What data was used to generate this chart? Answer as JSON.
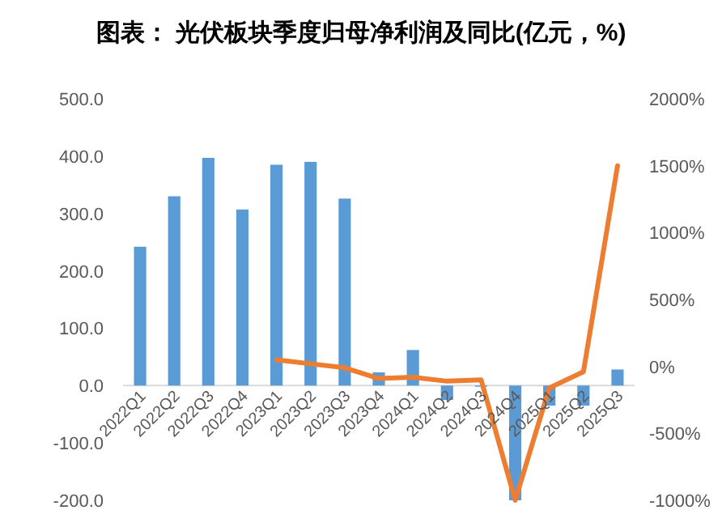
{
  "chart_data": {
    "type": "bar",
    "title": "图表：  光伏板块季度归母净利润及同比(亿元，%)",
    "categories": [
      "2022Q1",
      "2022Q2",
      "2022Q3",
      "2022Q4",
      "2023Q1",
      "2023Q2",
      "2023Q3",
      "2023Q4",
      "2024Q1",
      "2024Q2",
      "2024Q3",
      "2024Q4",
      "2025Q1",
      "2025Q2",
      "2025Q3"
    ],
    "series": [
      {
        "color": "#5b9bd5",
        "values": [
          242,
          330,
          397,
          307,
          385,
          390,
          326,
          23,
          62,
          -25,
          -2,
          -200,
          -35,
          -35,
          28
        ]
      },
      {
        "type": "line",
        "axis": "y2",
        "color": "#ed7d31",
        "values": [
          null,
          null,
          null,
          null,
          50,
          20,
          -10,
          -90,
          -80,
          -110,
          -100,
          -1000,
          -160,
          -40,
          1500
        ]
      }
    ],
    "ylim": [
      -200,
      500
    ],
    "yticks": [
      {
        "value": -200,
        "label": "-200.0"
      },
      {
        "value": -100,
        "label": "-100.0"
      },
      {
        "value": 0,
        "label": "0.0"
      },
      {
        "value": 100,
        "label": "100.0"
      },
      {
        "value": 200,
        "label": "200.0"
      },
      {
        "value": 300,
        "label": "300.0"
      },
      {
        "value": 400,
        "label": "400.0"
      },
      {
        "value": 500,
        "label": "500.0"
      }
    ],
    "y2lim": [
      -1000,
      2000
    ],
    "y2ticks": [
      {
        "value": -1000,
        "label": "-1000%"
      },
      {
        "value": -500,
        "label": "-500%"
      },
      {
        "value": 0,
        "label": "0%"
      },
      {
        "value": 500,
        "label": "500%"
      },
      {
        "value": 1000,
        "label": "1000%"
      },
      {
        "value": 1500,
        "label": "1500%"
      },
      {
        "value": 2000,
        "label": "2000%"
      }
    ],
    "grid": false
  }
}
